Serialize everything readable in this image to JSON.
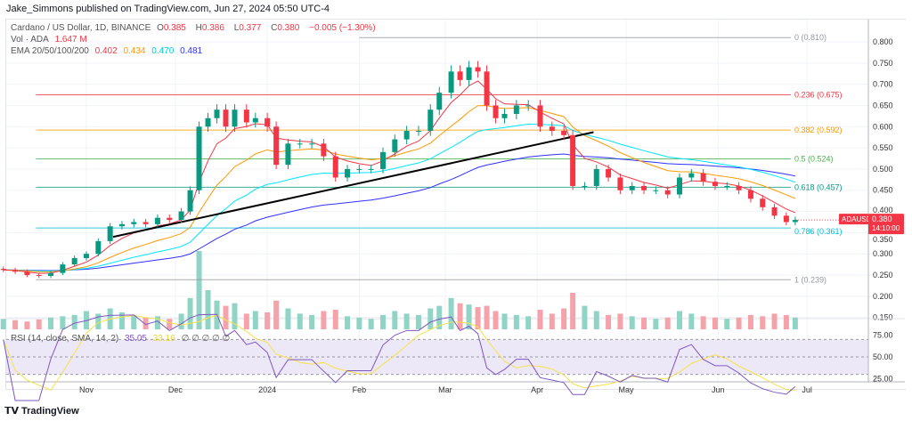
{
  "header": {
    "published": "Jake_Simmons published on TradingView.com, Jun 27, 2024 05:50 UTC-4"
  },
  "legend": {
    "symbol": "Cardano / US Dollar, 1D, BINANCE",
    "o_label": "O",
    "o": "0.385",
    "h_label": "H",
    "h": "0.386",
    "l_label": "L",
    "l": "0.377",
    "c_label": "C",
    "c": "0.380",
    "change": "−0.005 (−1.30%)",
    "vol_label": "Vol · ADA",
    "vol": "1.647 M",
    "ema_label": "EMA 20/50/100/200",
    "ema20": "0.402",
    "ema50": "0.434",
    "ema100": "0.470",
    "ema200": "0.481",
    "rsi_label": "RSI (14, close, SMA, 14, 2)",
    "rsi": "35.05",
    "rsi_sma": "33.16",
    "rsi_na": "∅ ∅ ∅ ∅ ∅"
  },
  "price_tag": {
    "symbol": "ADAUSD",
    "price": "0.380",
    "countdown": "14:10:00"
  },
  "brand": {
    "logo": "TradingView"
  },
  "colors": {
    "up": "#089981",
    "down": "#f23645",
    "ema20": "#f23645",
    "ema50": "#ff9800",
    "ema100": "#00e5ff",
    "ema200": "#3030ff",
    "rsi": "#7e57c2",
    "rsi_sma": "#f5e34a",
    "trendline": "#000000"
  },
  "chart_data": {
    "type": "candlestick",
    "price_axis": {
      "ticks": [
        "0.800",
        "0.750",
        "0.700",
        "0.650",
        "0.600",
        "0.550",
        "0.500",
        "0.450",
        "0.400",
        "0.350",
        "0.300",
        "0.250",
        "0.200",
        "0.150"
      ],
      "range": [
        0.12,
        0.83
      ]
    },
    "rsi_axis": {
      "ticks": [
        "75.00",
        "50.00",
        "25.00"
      ],
      "bands": [
        30,
        50,
        70
      ]
    },
    "time_axis": {
      "ticks": [
        {
          "label": "Nov",
          "date": "2023-11-01"
        },
        {
          "label": "Dec",
          "date": "2023-12-01"
        },
        {
          "label": "2024",
          "date": "2024-01-01"
        },
        {
          "label": "Feb",
          "date": "2024-02-01"
        },
        {
          "label": "Mar",
          "date": "2024-03-01"
        },
        {
          "label": "Apr",
          "date": "2024-04-01"
        },
        {
          "label": "May",
          "date": "2024-05-01"
        },
        {
          "label": "Jun",
          "date": "2024-06-01"
        },
        {
          "label": "Jul",
          "date": "2024-07-01"
        }
      ]
    },
    "fib_levels": [
      {
        "label": "0 (0.810)",
        "value": 0.81,
        "color": "#9598a1",
        "from": "2024-02-01"
      },
      {
        "label": "0.236 (0.675)",
        "value": 0.675,
        "color": "#f23645",
        "from": "2023-10-15"
      },
      {
        "label": "0.382 (0.592)",
        "value": 0.592,
        "color": "#ff9800",
        "from": "2023-10-15"
      },
      {
        "label": "0.5 (0.524)",
        "value": 0.524,
        "color": "#4caf50",
        "from": "2023-10-15"
      },
      {
        "label": "0.618 (0.457)",
        "value": 0.457,
        "color": "#089981",
        "from": "2023-10-15"
      },
      {
        "label": "0.786 (0.361)",
        "value": 0.361,
        "color": "#00bcd4",
        "from": "2023-10-15"
      },
      {
        "label": "1 (0.239)",
        "value": 0.239,
        "color": "#9598a1",
        "from": "2023-10-15"
      }
    ],
    "trendline": {
      "from": {
        "date": "2023-11-10",
        "price": 0.34
      },
      "to": {
        "date": "2024-04-20",
        "price": 0.587
      }
    },
    "dates": [
      "2023-10-04",
      "2023-10-08",
      "2023-10-12",
      "2023-10-16",
      "2023-10-20",
      "2023-10-24",
      "2023-10-28",
      "2023-11-01",
      "2023-11-05",
      "2023-11-09",
      "2023-11-13",
      "2023-11-17",
      "2023-11-21",
      "2023-11-25",
      "2023-11-29",
      "2023-12-03",
      "2023-12-06",
      "2023-12-09",
      "2023-12-12",
      "2023-12-15",
      "2023-12-18",
      "2023-12-21",
      "2023-12-25",
      "2023-12-28",
      "2024-01-01",
      "2024-01-04",
      "2024-01-08",
      "2024-01-12",
      "2024-01-16",
      "2024-01-20",
      "2024-01-24",
      "2024-01-28",
      "2024-02-01",
      "2024-02-05",
      "2024-02-09",
      "2024-02-13",
      "2024-02-17",
      "2024-02-21",
      "2024-02-25",
      "2024-02-28",
      "2024-03-03",
      "2024-03-06",
      "2024-03-09",
      "2024-03-12",
      "2024-03-15",
      "2024-03-18",
      "2024-03-21",
      "2024-03-25",
      "2024-03-29",
      "2024-04-02",
      "2024-04-06",
      "2024-04-10",
      "2024-04-13",
      "2024-04-17",
      "2024-04-21",
      "2024-04-25",
      "2024-04-29",
      "2024-05-03",
      "2024-05-07",
      "2024-05-11",
      "2024-05-15",
      "2024-05-19",
      "2024-05-23",
      "2024-05-27",
      "2024-05-31",
      "2024-06-04",
      "2024-06-08",
      "2024-06-12",
      "2024-06-16",
      "2024-06-20",
      "2024-06-24",
      "2024-06-27"
    ],
    "close": [
      0.262,
      0.258,
      0.25,
      0.248,
      0.255,
      0.275,
      0.29,
      0.3,
      0.33,
      0.365,
      0.37,
      0.375,
      0.37,
      0.385,
      0.38,
      0.4,
      0.45,
      0.6,
      0.62,
      0.64,
      0.6,
      0.64,
      0.61,
      0.62,
      0.6,
      0.51,
      0.56,
      0.56,
      0.56,
      0.53,
      0.48,
      0.5,
      0.5,
      0.5,
      0.54,
      0.57,
      0.59,
      0.59,
      0.64,
      0.68,
      0.73,
      0.71,
      0.74,
      0.73,
      0.65,
      0.62,
      0.63,
      0.65,
      0.65,
      0.6,
      0.59,
      0.58,
      0.46,
      0.46,
      0.5,
      0.48,
      0.45,
      0.46,
      0.45,
      0.45,
      0.44,
      0.48,
      0.49,
      0.47,
      0.46,
      0.46,
      0.45,
      0.43,
      0.41,
      0.39,
      0.375,
      0.38
    ],
    "volume": [
      40,
      35,
      30,
      38,
      45,
      50,
      55,
      70,
      60,
      80,
      65,
      55,
      45,
      50,
      40,
      60,
      120,
      300,
      150,
      110,
      90,
      100,
      60,
      70,
      65,
      110,
      80,
      60,
      55,
      70,
      75,
      50,
      45,
      40,
      55,
      70,
      60,
      55,
      80,
      90,
      120,
      100,
      95,
      85,
      90,
      70,
      60,
      55,
      50,
      75,
      60,
      80,
      140,
      90,
      70,
      55,
      60,
      50,
      45,
      40,
      45,
      70,
      60,
      50,
      45,
      40,
      45,
      55,
      50,
      60,
      55,
      45
    ]
  }
}
